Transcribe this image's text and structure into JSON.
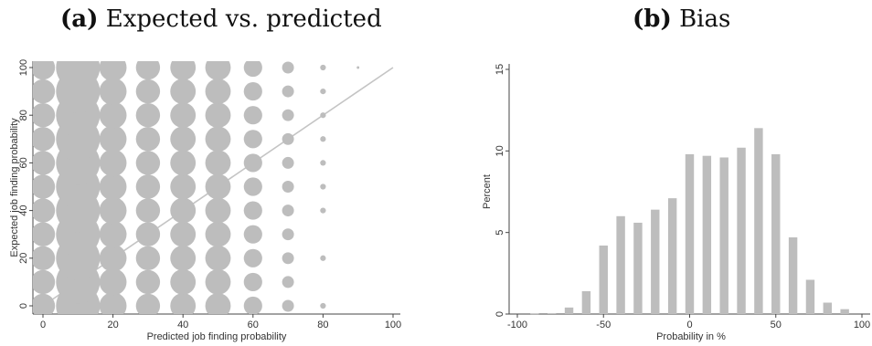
{
  "chart_data": [
    {
      "panel_tag": "(a)",
      "panel_name": "Expected vs. predicted",
      "type": "scatter",
      "xlabel": "Predicted job finding probability",
      "ylabel": "Expected job finding probability",
      "xlim": [
        0,
        100
      ],
      "ylim": [
        0,
        100
      ],
      "xticks": [
        0,
        20,
        40,
        60,
        80,
        100
      ],
      "yticks": [
        0,
        20,
        40,
        60,
        80,
        100
      ],
      "reference_line": {
        "from": [
          0,
          0
        ],
        "to": [
          100,
          100
        ]
      },
      "marker_color": "#bdbdbd",
      "columns": [
        {
          "x": 0,
          "y": [
            0,
            10,
            20,
            30,
            40,
            50,
            60,
            70,
            80,
            90,
            100
          ],
          "weight": 0.55
        },
        {
          "x": 10,
          "y": [
            0,
            10,
            20,
            30,
            40,
            50,
            60,
            70,
            80,
            90,
            100
          ],
          "weight": 1.0
        },
        {
          "x": 20,
          "y": [
            0,
            10,
            20,
            30,
            40,
            50,
            60,
            70,
            80,
            90,
            100
          ],
          "weight": 0.62
        },
        {
          "x": 30,
          "y": [
            0,
            10,
            20,
            30,
            40,
            50,
            60,
            70,
            80,
            90,
            100
          ],
          "weight": 0.55
        },
        {
          "x": 40,
          "y": [
            0,
            10,
            20,
            30,
            40,
            50,
            60,
            70,
            80,
            90,
            100
          ],
          "weight": 0.58
        },
        {
          "x": 50,
          "y": [
            0,
            10,
            20,
            30,
            40,
            50,
            60,
            70,
            80,
            90,
            100
          ],
          "weight": 0.58
        },
        {
          "x": 60,
          "y": [
            0,
            10,
            20,
            30,
            40,
            50,
            60,
            70,
            80,
            90,
            100
          ],
          "weight": 0.42
        },
        {
          "x": 70,
          "y": [
            0,
            10,
            20,
            30,
            40,
            50,
            60,
            70,
            80,
            90,
            100
          ],
          "weight": 0.27
        },
        {
          "x": 80,
          "y": [
            0,
            20,
            40,
            50,
            60,
            70,
            80,
            90,
            100
          ],
          "weight": 0.13
        },
        {
          "x": 90,
          "y": [
            100
          ],
          "weight": 0.06
        }
      ]
    },
    {
      "panel_tag": "(b)",
      "panel_name": "Bias",
      "type": "bar",
      "xlabel": "Probability in %",
      "ylabel": "Percent",
      "xlim": [
        -100,
        100
      ],
      "ylim": [
        0,
        15
      ],
      "xticks": [
        -100,
        -50,
        0,
        50,
        100
      ],
      "yticks": [
        0,
        5,
        10,
        15
      ],
      "bar_color": "#bdbdbd",
      "bin_width": 10,
      "x": [
        -90,
        -80,
        -70,
        -60,
        -50,
        -40,
        -30,
        -20,
        -10,
        0,
        10,
        20,
        30,
        40,
        50,
        60,
        70,
        80,
        90
      ],
      "values": [
        0.02,
        0.05,
        0.4,
        1.4,
        4.2,
        6.0,
        5.6,
        6.4,
        7.1,
        9.8,
        9.7,
        9.6,
        10.2,
        11.4,
        9.8,
        4.7,
        2.1,
        0.7,
        0.3
      ]
    }
  ]
}
